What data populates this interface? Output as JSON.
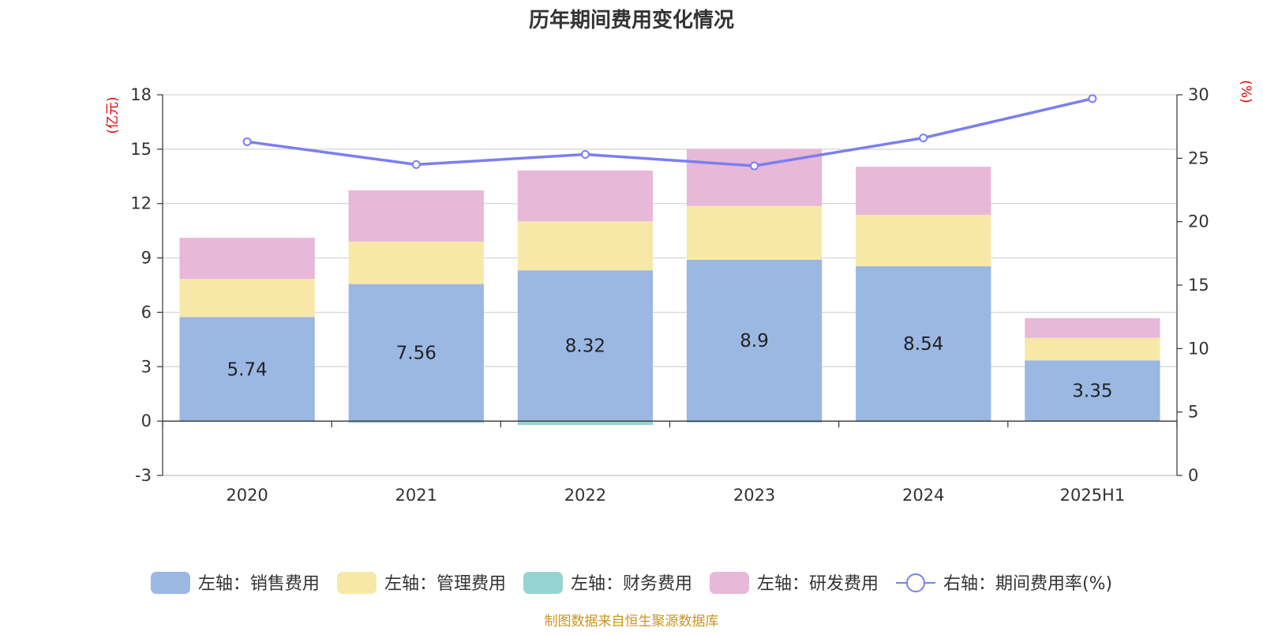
{
  "chart_data": {
    "type": "bar",
    "title": "历年期间费用变化情况",
    "categories": [
      "2020",
      "2021",
      "2022",
      "2023",
      "2024",
      "2025H1"
    ],
    "left_axis": {
      "unit_label": "(亿元)",
      "min": -3,
      "max": 18,
      "ticks": [
        -3,
        0,
        3,
        6,
        9,
        12,
        15,
        18
      ]
    },
    "right_axis": {
      "unit_label": "(%)",
      "min": 0,
      "max": 30,
      "ticks": [
        0,
        5,
        10,
        15,
        20,
        25,
        30
      ]
    },
    "series": [
      {
        "name": "左轴：销售费用",
        "kind": "bar",
        "stack": "total",
        "color": "#9BB8E3",
        "values": [
          5.74,
          7.56,
          8.32,
          8.9,
          8.54,
          3.35
        ],
        "labels": [
          "5.74",
          "7.56",
          "8.32",
          "8.9",
          "8.54",
          "3.35"
        ]
      },
      {
        "name": "左轴：管理费用",
        "kind": "bar",
        "stack": "total",
        "color": "#F8E8A8",
        "values": [
          2.1,
          2.34,
          2.7,
          2.96,
          2.84,
          1.24
        ]
      },
      {
        "name": "左轴：财务费用",
        "kind": "bar",
        "stack": "total",
        "color": "#96D4D2",
        "values": [
          -0.03,
          -0.1,
          -0.22,
          -0.08,
          -0.04,
          -0.02
        ]
      },
      {
        "name": "左轴：研发费用",
        "kind": "bar",
        "stack": "total",
        "color": "#E8B8D8",
        "values": [
          2.27,
          2.83,
          2.8,
          3.16,
          2.65,
          1.09
        ]
      },
      {
        "name": "右轴：期间费用率(%)",
        "kind": "line",
        "axis": "right",
        "color": "#7B7FEE",
        "values": [
          26.3,
          24.5,
          25.3,
          24.4,
          26.6,
          29.7
        ]
      }
    ],
    "legend_position": "bottom",
    "grid": true,
    "source_note": "制图数据来自恒生聚源数据库"
  }
}
